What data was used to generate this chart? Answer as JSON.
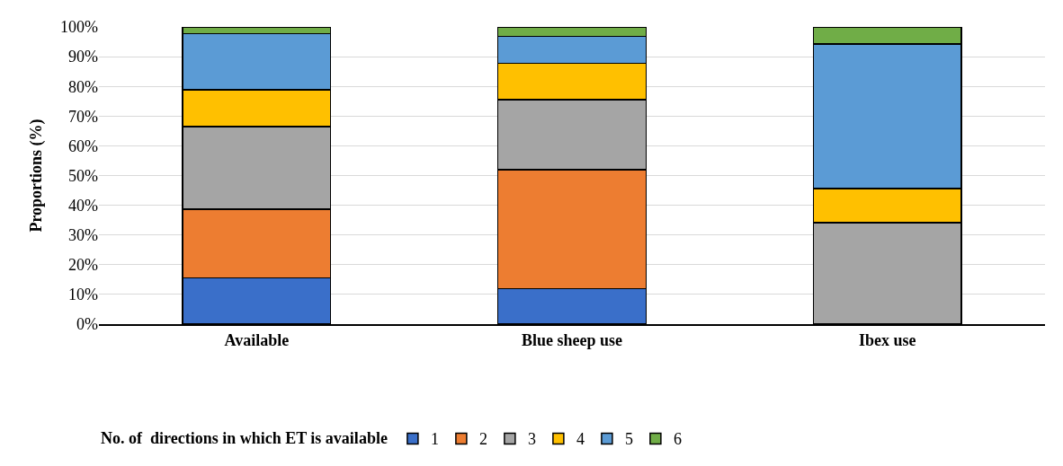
{
  "chart_data": {
    "type": "bar",
    "stacked": true,
    "ylabel": "Proportions (%)",
    "legend_title": "No. of  directions in which ET is available",
    "categories": [
      "Available",
      "Blue sheep use",
      "Ibex use"
    ],
    "series": [
      {
        "name": "1",
        "color": "#3a6fc9",
        "values": [
          15.5,
          12.0,
          0
        ]
      },
      {
        "name": "2",
        "color": "#ed7d31",
        "values": [
          23.1,
          39.9,
          0
        ]
      },
      {
        "name": "3",
        "color": "#a5a5a5",
        "values": [
          27.9,
          23.7,
          34.2
        ]
      },
      {
        "name": "4",
        "color": "#ffc000",
        "values": [
          12.3,
          12.1,
          11.4
        ]
      },
      {
        "name": "5",
        "color": "#5b9bd5",
        "values": [
          19.0,
          9.1,
          48.7
        ]
      },
      {
        "name": "6",
        "color": "#70ad47",
        "values": [
          2.2,
          3.2,
          5.7
        ]
      }
    ],
    "ylim": [
      0,
      100
    ],
    "yticks": [
      {
        "value": 0,
        "label": "0%"
      },
      {
        "value": 10,
        "label": "10%"
      },
      {
        "value": 20,
        "label": "20%"
      },
      {
        "value": 30,
        "label": "30%"
      },
      {
        "value": 40,
        "label": "40%"
      },
      {
        "value": 50,
        "label": "50%"
      },
      {
        "value": 60,
        "label": "60%"
      },
      {
        "value": 70,
        "label": "70%"
      },
      {
        "value": 80,
        "label": "80%"
      },
      {
        "value": 90,
        "label": "90%"
      },
      {
        "value": 100,
        "label": "100%"
      }
    ],
    "grid": "y",
    "legend": "bottom"
  }
}
